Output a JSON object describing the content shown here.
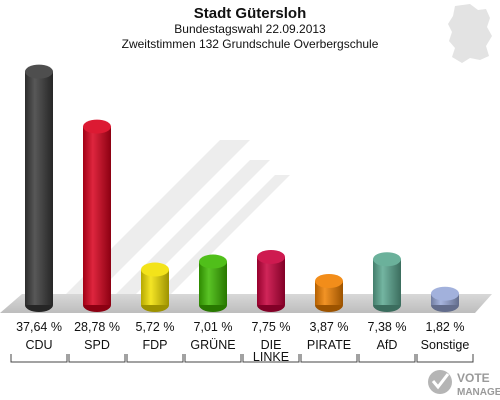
{
  "chart_data": {
    "type": "bar",
    "title": "Stadt Gütersloh",
    "subtitle": "Bundestagswahl 22.09.2013",
    "subtitle2": "Zweitstimmen 132 Grundschule Overbergschule",
    "categories": [
      "CDU",
      "SPD",
      "FDP",
      "GRÜNE",
      "DIE LINKE",
      "PIRATE",
      "AfD",
      "Sonstige"
    ],
    "values": [
      37.64,
      28.78,
      5.72,
      7.01,
      7.75,
      3.87,
      7.38,
      1.82
    ],
    "value_labels": [
      "37,64 %",
      "28,78 %",
      "5,72 %",
      "7,01 %",
      "7,75 %",
      "3,87 %",
      "7,38 %",
      "1,82 %"
    ],
    "colors": [
      "#3a3a3a",
      "#d8001c",
      "#f2e000",
      "#3db800",
      "#c8003c",
      "#f08000",
      "#5aa890",
      "#98a8d8"
    ],
    "ylim": [
      0,
      40
    ],
    "grid": false,
    "legend": "none"
  },
  "watermark": {
    "line1": "VOTE",
    "line2": "MANAGER"
  }
}
